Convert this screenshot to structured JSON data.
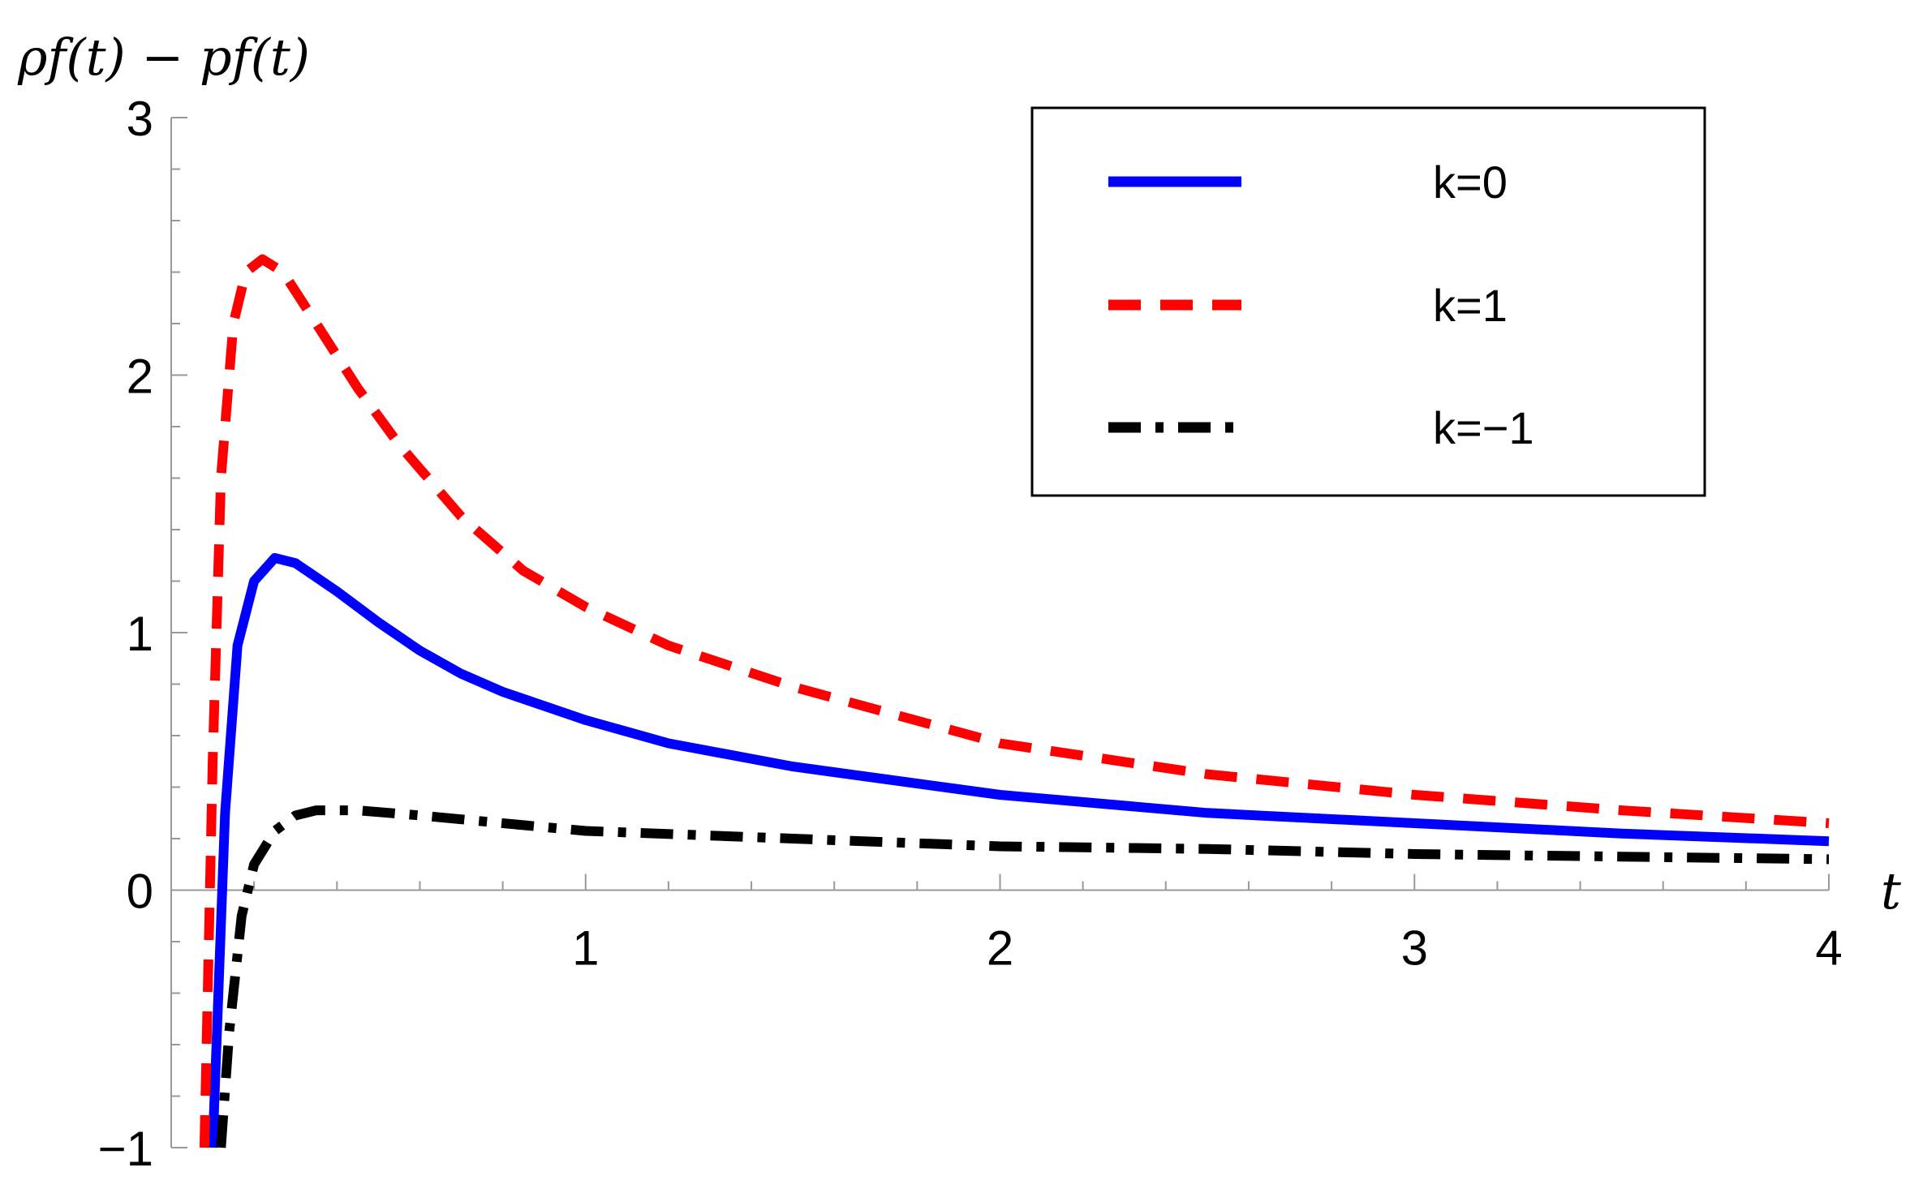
{
  "chart_data": {
    "type": "line",
    "xlabel": "t",
    "ylabel": "ρf(t) − pf(t)",
    "xlim": [
      0,
      4
    ],
    "ylim": [
      -1,
      3
    ],
    "x_ticks": [
      "1",
      "2",
      "3",
      "4"
    ],
    "y_ticks": [
      "−1",
      "0",
      "1",
      "2",
      "3"
    ],
    "grid": false,
    "legend_position": "top-right",
    "series": [
      {
        "name": "k=0",
        "color": "#0000ff",
        "style": "solid",
        "points": [
          [
            0.1,
            -1.0
          ],
          [
            0.13,
            0.3
          ],
          [
            0.16,
            0.95
          ],
          [
            0.2,
            1.2
          ],
          [
            0.25,
            1.29
          ],
          [
            0.3,
            1.27
          ],
          [
            0.4,
            1.16
          ],
          [
            0.5,
            1.04
          ],
          [
            0.6,
            0.93
          ],
          [
            0.7,
            0.84
          ],
          [
            0.8,
            0.77
          ],
          [
            1.0,
            0.66
          ],
          [
            1.2,
            0.57
          ],
          [
            1.5,
            0.48
          ],
          [
            2.0,
            0.37
          ],
          [
            2.5,
            0.3
          ],
          [
            3.0,
            0.26
          ],
          [
            3.5,
            0.22
          ],
          [
            4.0,
            0.19
          ]
        ]
      },
      {
        "name": "k=1",
        "color": "#ff0000",
        "style": "dashed",
        "points": [
          [
            0.08,
            -1.0
          ],
          [
            0.1,
            0.5
          ],
          [
            0.12,
            1.6
          ],
          [
            0.15,
            2.2
          ],
          [
            0.18,
            2.4
          ],
          [
            0.22,
            2.45
          ],
          [
            0.27,
            2.4
          ],
          [
            0.35,
            2.2
          ],
          [
            0.45,
            1.95
          ],
          [
            0.55,
            1.73
          ],
          [
            0.7,
            1.45
          ],
          [
            0.85,
            1.24
          ],
          [
            1.0,
            1.1
          ],
          [
            1.2,
            0.95
          ],
          [
            1.5,
            0.79
          ],
          [
            2.0,
            0.57
          ],
          [
            2.5,
            0.45
          ],
          [
            3.0,
            0.37
          ],
          [
            3.5,
            0.31
          ],
          [
            4.0,
            0.26
          ]
        ]
      },
      {
        "name": "k=−1",
        "color": "#000000",
        "style": "dashdot",
        "points": [
          [
            0.12,
            -1.0
          ],
          [
            0.14,
            -0.55
          ],
          [
            0.17,
            -0.1
          ],
          [
            0.2,
            0.1
          ],
          [
            0.25,
            0.23
          ],
          [
            0.3,
            0.29
          ],
          [
            0.35,
            0.31
          ],
          [
            0.45,
            0.31
          ],
          [
            0.6,
            0.29
          ],
          [
            0.8,
            0.26
          ],
          [
            1.0,
            0.23
          ],
          [
            1.5,
            0.2
          ],
          [
            2.0,
            0.17
          ],
          [
            2.5,
            0.16
          ],
          [
            3.0,
            0.14
          ],
          [
            3.5,
            0.13
          ],
          [
            4.0,
            0.12
          ]
        ]
      }
    ]
  }
}
